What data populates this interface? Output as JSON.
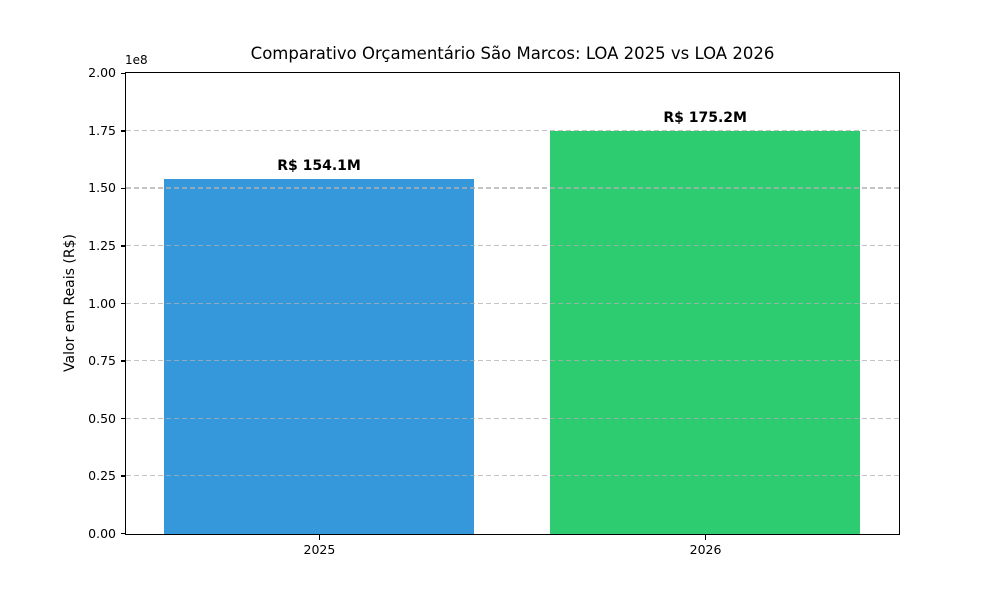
{
  "chart_data": {
    "type": "bar",
    "title": "Comparativo Orçamentário São Marcos: LOA 2025 vs LOA 2026",
    "ylabel": "Valor em Reais (R$)",
    "xlabel": "",
    "y_offset_label": "1e8",
    "categories": [
      "2025",
      "2026"
    ],
    "values": [
      154100000,
      175200000
    ],
    "bar_labels": [
      "R$ 154.1M",
      "R$ 175.2M"
    ],
    "bar_colors": [
      "#3498db",
      "#2ecc71"
    ],
    "ylim": [
      0,
      200000000
    ],
    "yticks": [
      {
        "value": 0,
        "label": "0.00"
      },
      {
        "value": 25000000,
        "label": "0.25"
      },
      {
        "value": 50000000,
        "label": "0.50"
      },
      {
        "value": 75000000,
        "label": "0.75"
      },
      {
        "value": 100000000,
        "label": "1.00"
      },
      {
        "value": 125000000,
        "label": "1.25"
      },
      {
        "value": 150000000,
        "label": "1.50"
      },
      {
        "value": 175000000,
        "label": "1.75"
      },
      {
        "value": 200000000,
        "label": "2.00"
      }
    ],
    "grid": {
      "axis": "y",
      "linestyle": "dashed",
      "color": "#c6c6c6",
      "drawn_over_bars": true
    },
    "legend_position": "none",
    "background": "#ffffff"
  }
}
